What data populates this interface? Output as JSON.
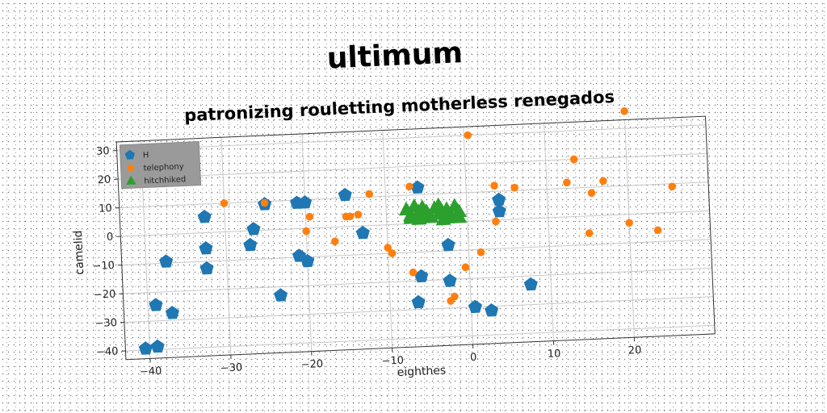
{
  "chart_data": {
    "type": "scatter",
    "title": "ultimum",
    "subtitle": "patronizing rouletting motherless renegados",
    "xlabel": "eighthes",
    "ylabel": "camelid",
    "xlim": [
      -43,
      30
    ],
    "ylim": [
      -43,
      33
    ],
    "xticks": [
      -40,
      -30,
      -20,
      -10,
      0,
      10,
      20
    ],
    "yticks": [
      -40,
      -30,
      -20,
      -10,
      0,
      10,
      20,
      30
    ],
    "grid": true,
    "legend": "upper-left",
    "series": [
      {
        "name": "H",
        "marker": "pentagon",
        "color": "#1f77b4",
        "points": [
          [
            -40.5,
            -39.5
          ],
          [
            -39,
            -39
          ],
          [
            -39,
            -24.5
          ],
          [
            -37,
            -27.5
          ],
          [
            -37.5,
            -9.5
          ],
          [
            -32.5,
            5.5
          ],
          [
            -32.5,
            -5.5
          ],
          [
            -32.5,
            -12.5
          ],
          [
            -27,
            -5
          ],
          [
            -26.5,
            0.5
          ],
          [
            -25,
            9
          ],
          [
            -23.5,
            -23
          ],
          [
            -21,
            9
          ],
          [
            -20,
            9
          ],
          [
            -21,
            -9.5
          ],
          [
            -20,
            -11.5
          ],
          [
            -15,
            11
          ],
          [
            -13,
            -2.5
          ],
          [
            -6,
            12.5
          ],
          [
            -6,
            -18.5
          ],
          [
            -6.5,
            -27.5
          ],
          [
            -2.5,
            -8
          ],
          [
            -2.5,
            -20.5
          ],
          [
            0.5,
            -30
          ],
          [
            2.5,
            -31.5
          ],
          [
            4,
            7
          ],
          [
            4,
            3
          ],
          [
            7.5,
            -23
          ]
        ]
      },
      {
        "name": "telephony",
        "marker": "circle",
        "color": "#ff7f0e",
        "points": [
          [
            -30,
            10
          ],
          [
            -25,
            9.5
          ],
          [
            -20,
            -1
          ],
          [
            -19.5,
            4
          ],
          [
            -16.5,
            -5
          ],
          [
            -15,
            3.5
          ],
          [
            -14.5,
            3.5
          ],
          [
            -13.5,
            4
          ],
          [
            -12,
            11
          ],
          [
            -10,
            -8
          ],
          [
            -9.5,
            -10
          ],
          [
            -7,
            13
          ],
          [
            -7,
            -17
          ],
          [
            -2.5,
            -27.5
          ],
          [
            -2,
            -26
          ],
          [
            -0.5,
            -16
          ],
          [
            0.5,
            30
          ],
          [
            1.5,
            -11
          ],
          [
            3.5,
            12
          ],
          [
            3.5,
            -0.5
          ],
          [
            6,
            11
          ],
          [
            12.5,
            12
          ],
          [
            13.5,
            20
          ],
          [
            15,
            -6
          ],
          [
            15.5,
            8
          ],
          [
            17,
            12
          ],
          [
            20,
            36
          ],
          [
            20,
            -3
          ],
          [
            23.5,
            -6
          ],
          [
            25.5,
            9
          ]
        ]
      },
      {
        "name": "hitchhiked",
        "marker": "triangle",
        "color": "#2ca02c",
        "points": [
          [
            -7.5,
            5
          ],
          [
            -7,
            3
          ],
          [
            -6.5,
            6
          ],
          [
            -6,
            1.5
          ],
          [
            -5.5,
            5.5
          ],
          [
            -5,
            4
          ],
          [
            -4.5,
            2
          ],
          [
            -4,
            5
          ],
          [
            -3.5,
            3
          ],
          [
            -3,
            1
          ],
          [
            -2.5,
            4.5
          ],
          [
            -2,
            2.5
          ],
          [
            -1.5,
            5.5
          ],
          [
            -1,
            3.5
          ],
          [
            -6,
            4
          ],
          [
            -5,
            2.5
          ],
          [
            -3.5,
            6
          ],
          [
            -2.5,
            1.5
          ],
          [
            -7,
            2
          ],
          [
            -1,
            1.5
          ]
        ]
      }
    ]
  }
}
